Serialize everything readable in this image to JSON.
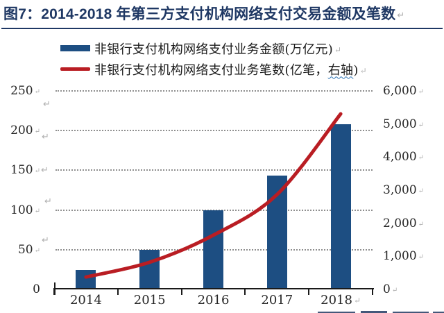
{
  "title": {
    "text": "图7：2014-2018 年第三方支付机构网络支付交易金额及笔数"
  },
  "marks": {
    "return_glyph": "↵"
  },
  "legend": {
    "position": "top-left",
    "items": [
      {
        "label": "非银行支付机构网络支付业务金额(万亿元)",
        "swatch": "bar-swatch"
      },
      {
        "label_pre": "非银行支付机构网络支付业务笔数(亿笔，",
        "label_wavy": "右轴",
        "label_post": ")",
        "swatch": "line-swatch"
      }
    ]
  },
  "chart_data": {
    "type": "bar+line combo, dual axis",
    "categories": [
      "2014",
      "2015",
      "2016",
      "2017",
      "2018"
    ],
    "series": [
      {
        "name": "非银行支付机构网络支付业务金额(万亿元)",
        "type": "bar",
        "axis": "left",
        "color": "#1D4E82",
        "values": [
          24.7,
          49.5,
          99.3,
          143.3,
          208.1
        ]
      },
      {
        "name": "非银行支付机构网络支付业务笔数(亿笔，右轴)",
        "type": "line",
        "axis": "right",
        "color": "#B91D23",
        "values": [
          374,
          821,
          1639,
          2867,
          5306
        ]
      }
    ],
    "left_axis": {
      "range": [
        0,
        250
      ],
      "ticks": [
        0,
        50,
        100,
        150,
        200,
        250
      ],
      "tick_labels": [
        "0",
        "50",
        "100",
        "150",
        "200",
        "250"
      ]
    },
    "right_axis": {
      "range": [
        0,
        6000
      ],
      "ticks": [
        0,
        1000,
        2000,
        3000,
        4000,
        5000,
        6000
      ],
      "tick_labels": [
        "0",
        "1,000",
        "2,000",
        "3,000",
        "4,000",
        "5,000",
        "6,000"
      ]
    },
    "grid": {
      "horizontal_dotted_at_left_ticks": [
        50,
        100,
        150,
        200,
        250
      ],
      "vertical": false
    },
    "legend_position": "top-left",
    "line_is_smoothed": true
  },
  "colors": {
    "title": "#1F3864",
    "bar": "#1D4E82",
    "line": "#B91D23",
    "grid": "#8F8F8F",
    "axis": "#1A1A1A",
    "tick_text": "#262626",
    "formatting_mark": "#AFAFAF",
    "wavy_underline": "#2E74B5",
    "cutoff_text_fragment": "#44587A"
  }
}
